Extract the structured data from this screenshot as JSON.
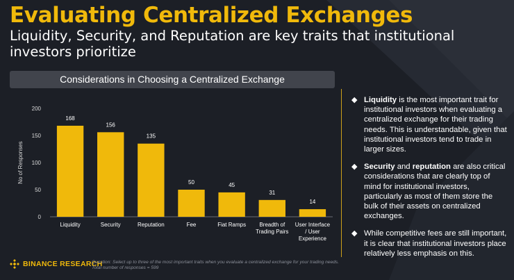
{
  "header": {
    "title": "Evaluating Centralized Exchanges",
    "subtitle": "Liquidity, Security, and Reputation are key traits that institutional investors prioritize"
  },
  "chart_data": {
    "type": "bar",
    "title": "Considerations in Choosing a Centralized Exchange",
    "xlabel": "",
    "ylabel": "No of Responses",
    "ylim": [
      0,
      200
    ],
    "yticks": [
      0,
      50,
      100,
      150,
      200
    ],
    "grid": false,
    "categories": [
      "Liquidity",
      "Security",
      "Reputation",
      "Fee",
      "Fiat Ramps",
      "Breadth of Trading Pairs",
      "User Interface / User Experience"
    ],
    "category_lines": [
      [
        "Liquidity"
      ],
      [
        "Security"
      ],
      [
        "Reputation"
      ],
      [
        "Fee"
      ],
      [
        "Fiat Ramps"
      ],
      [
        "Breadth of",
        "Trading Pairs"
      ],
      [
        "User Interface",
        "/ User",
        "Experience"
      ]
    ],
    "values": [
      168,
      156,
      135,
      50,
      45,
      31,
      14
    ],
    "data_labels": [
      "168",
      "156",
      "135",
      "50",
      "45",
      "31",
      "14"
    ],
    "bar_color": "#f0b90b"
  },
  "bullets": [
    {
      "strong1": "Liquidity",
      "text1": " is the most important trait for institutional investors when evaluating a centralized exchange for their trading needs. This is understandable, given that institutional investors tend to trade in larger sizes.",
      "strong2": "",
      "text2": ""
    },
    {
      "strong1": "Security",
      "text1": " and ",
      "strong2": "reputation",
      "text2": " are also critical considerations that are clearly top of mind for institutional investors, particularly as most of them store the bulk of their assets on centralized exchanges."
    },
    {
      "strong1": "",
      "text1": "While competitive fees are still important, it is clear that institutional investors place relatively less emphasis on this.",
      "strong2": "",
      "text2": ""
    }
  ],
  "bullet_glyph": "◆",
  "footer": {
    "logo_text": "BINANCE RESEARCH",
    "question": "Question: Select up to three of the most important traits when you evaluate a centralized exchange for your trading needs.",
    "total": "Total number of responses = 599"
  },
  "colors": {
    "background": "#1c1f26",
    "accent": "#f0b90b",
    "text": "#ffffff",
    "muted": "#8b8f99"
  }
}
